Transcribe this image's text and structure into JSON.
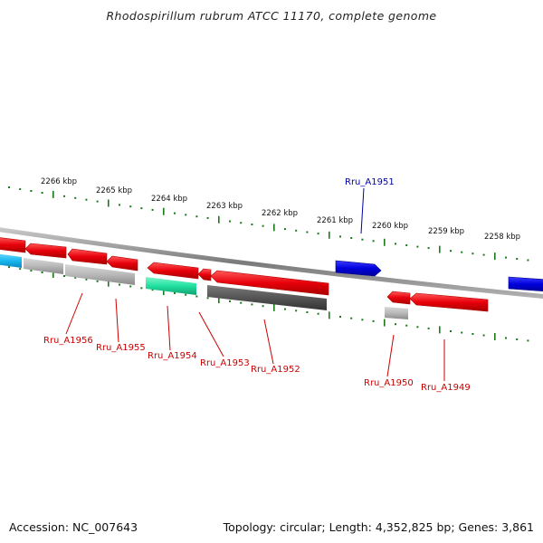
{
  "title": "Rhodospirillum rubrum ATCC 11170, complete genome",
  "footer": {
    "accession": "Accession: NC_007643",
    "stats": "Topology: circular; Length: 4,352,825 bp; Genes: 3,861"
  },
  "colors": {
    "backbone": "#8c8c8c",
    "tick": "#1a7a1a",
    "gene_red": "#e8000b",
    "gene_blue": "#0000dd",
    "label_red": "#cc0000",
    "label_blue": "#0000aa",
    "cds_grey": "#b8b8b8",
    "cds_dark": "#555555",
    "cds_cyan": "#19b8f0",
    "cds_green": "#22e0a0"
  },
  "kbp_ticks": [
    "2266 kbp",
    "2265 kbp",
    "2264 kbp",
    "2263 kbp",
    "2262 kbp",
    "2261 kbp",
    "2260 kbp",
    "2259 kbp",
    "2258 kbp"
  ],
  "gene_labels": [
    "Rru_A1951",
    "Rru_A1956",
    "Rru_A1955",
    "Rru_A1954",
    "Rru_A1953",
    "Rru_A1952",
    "Rru_A1950",
    "Rru_A1949"
  ]
}
